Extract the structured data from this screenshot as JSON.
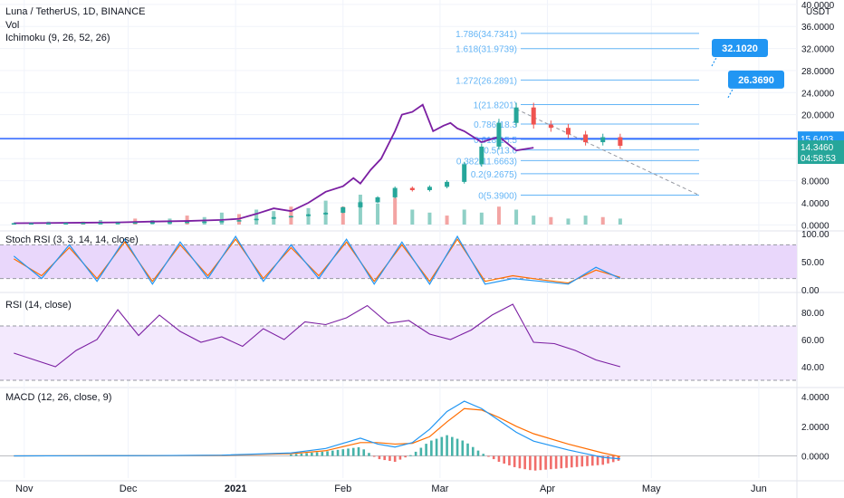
{
  "header": {
    "title": "Luna / TetherUS, 1D, BINANCE",
    "indicators": [
      "Vol",
      "Ichimoku (9, 26, 52, 26)"
    ]
  },
  "colors": {
    "up": "#26a69a",
    "down": "#ef5350",
    "vol_up": "#8fd0c6",
    "vol_down": "#f3a4a3",
    "ichimoku": "#7b1fa2",
    "fib": "#64b5f6",
    "level_line": "#2962ff",
    "stoch_k": "#2196f3",
    "stoch_d": "#ff6d00",
    "rsi": "#7b1fa2",
    "macd": "#2196f3",
    "signal": "#ff6d00",
    "band_fill": "#e9d7fb",
    "callout": "#2196f3",
    "price_tag": "#2196f3",
    "timer_tag": "#26a69a"
  },
  "price_axis": {
    "unit": "USDT",
    "ticks": [
      "40.0000",
      "36.0000",
      "32.0000",
      "28.0000",
      "24.0000",
      "20.0000",
      "16.0000",
      "12.0000",
      "8.0000",
      "4.0000",
      "0.0000"
    ],
    "tick_values": [
      40,
      36,
      32,
      28,
      24,
      20,
      16,
      12,
      8,
      4,
      0
    ],
    "range": [
      -0.6,
      40.8
    ]
  },
  "current_price": {
    "value": "14.3460",
    "number": 14.346,
    "timer": "04:58:53"
  },
  "horizontal_level": {
    "value": "15.6403",
    "number": 15.6403
  },
  "callouts": [
    {
      "text": "32.1020",
      "value": 32.102
    },
    {
      "text": "26.3690",
      "value": 26.369
    }
  ],
  "fib_levels": [
    {
      "label": "1.786(34.7341)",
      "value": 34.7341
    },
    {
      "label": "1.618(31.9739)",
      "value": 31.9739
    },
    {
      "label": "1.272(26.2891)",
      "value": 26.2891
    },
    {
      "label": "1(21.8201)",
      "value": 21.8201
    },
    {
      "label": "0.786(18.3",
      "value": 18.3
    },
    {
      "label": "0.618(15.5",
      "value": 15.5
    },
    {
      "label": "0.5(13.6",
      "value": 13.6
    },
    {
      "label": "0.382(11.6663)",
      "value": 11.6663
    },
    {
      "label": "0.2(9.2675)",
      "value": 9.2675
    },
    {
      "label": "0(5.3900)",
      "value": 5.39
    }
  ],
  "x_axis": {
    "labels": [
      {
        "text": "Nov",
        "day": 3
      },
      {
        "text": "Dec",
        "day": 33
      },
      {
        "text": "2021",
        "day": 64,
        "bold": true
      },
      {
        "text": "Feb",
        "day": 95
      },
      {
        "text": "Mar",
        "day": 123
      },
      {
        "text": "Apr",
        "day": 154
      },
      {
        "text": "May",
        "day": 184
      },
      {
        "text": "Jun",
        "day": 215
      }
    ],
    "range_days": [
      -4,
      226
    ]
  },
  "chart_data": [
    {
      "type": "candlestick",
      "name": "Luna / TetherUS, 1D, BINANCE",
      "x_unit": "days from Oct 29, 2020",
      "x": [
        0,
        5,
        10,
        15,
        20,
        25,
        30,
        35,
        40,
        45,
        50,
        55,
        60,
        65,
        70,
        75,
        80,
        85,
        90,
        95,
        100,
        105,
        110,
        115,
        120,
        125,
        130,
        135,
        140,
        145,
        150,
        155,
        160,
        165,
        170,
        175
      ],
      "close": [
        0.3,
        0.31,
        0.33,
        0.35,
        0.37,
        0.38,
        0.4,
        0.45,
        0.47,
        0.52,
        0.55,
        0.6,
        0.7,
        0.85,
        1.1,
        1.4,
        1.6,
        1.9,
        2.2,
        3.2,
        4.1,
        5.0,
        6.7,
        6.3,
        6.9,
        7.8,
        11.0,
        14.2,
        18.5,
        21.3,
        18.2,
        17.6,
        16.4,
        15.0,
        15.9,
        14.35
      ]
    },
    {
      "type": "line",
      "name": "Ichimoku (9, 26, 52, 26)",
      "x": [
        0,
        10,
        20,
        30,
        40,
        50,
        60,
        65,
        70,
        75,
        80,
        85,
        90,
        95,
        98,
        100,
        103,
        106,
        110,
        112,
        115,
        118,
        121,
        124,
        126,
        128,
        130,
        135,
        140,
        145,
        150
      ],
      "values": [
        0.3,
        0.35,
        0.4,
        0.45,
        0.6,
        0.7,
        0.9,
        1.1,
        2.0,
        3.0,
        2.5,
        4.0,
        6.0,
        7.0,
        8.5,
        7.5,
        10.0,
        12.0,
        17.0,
        20.0,
        20.5,
        21.8,
        17.0,
        18.0,
        18.5,
        17.5,
        17.0,
        15.0,
        16.0,
        13.5,
        14.0
      ]
    },
    {
      "type": "bar",
      "name": "Vol",
      "x_range": [
        0,
        175
      ],
      "values_relative": [
        0.05,
        0.05,
        0.1,
        0.05,
        0.1,
        0.15,
        0.1,
        0.2,
        0.15,
        0.2,
        0.3,
        0.25,
        0.4,
        0.35,
        0.5,
        0.45,
        0.6,
        0.55,
        0.8,
        0.6,
        1.0,
        0.7,
        0.9,
        0.5,
        0.4,
        0.3,
        0.5,
        0.4,
        0.6,
        0.5,
        0.3,
        0.25,
        0.2,
        0.3,
        0.25,
        0.2
      ]
    },
    {
      "type": "line",
      "name": "Stoch RSI (3, 3, 14, 14, close)",
      "ylim": [
        0,
        100
      ],
      "ticks": [
        "100.00",
        "50.00",
        "0.00"
      ],
      "tick_values": [
        100,
        50,
        0
      ],
      "band": [
        20,
        80
      ],
      "x": [
        0,
        8,
        16,
        24,
        32,
        40,
        48,
        56,
        64,
        72,
        80,
        88,
        96,
        104,
        112,
        120,
        128,
        136,
        144,
        152,
        160,
        168,
        175
      ],
      "k": [
        60,
        20,
        80,
        15,
        90,
        10,
        85,
        20,
        95,
        15,
        80,
        20,
        90,
        10,
        85,
        10,
        95,
        10,
        20,
        15,
        10,
        40,
        20
      ],
      "d": [
        55,
        25,
        75,
        20,
        85,
        15,
        80,
        25,
        90,
        20,
        75,
        25,
        85,
        15,
        80,
        15,
        90,
        15,
        25,
        18,
        12,
        35,
        22
      ]
    },
    {
      "type": "line",
      "name": "RSI (14, close)",
      "ylim": [
        30,
        90
      ],
      "ticks": [
        "80.00",
        "60.00",
        "40.00"
      ],
      "tick_values": [
        80,
        60,
        40
      ],
      "band": [
        30,
        70
      ],
      "x": [
        0,
        6,
        12,
        18,
        24,
        30,
        36,
        42,
        48,
        54,
        60,
        66,
        72,
        78,
        84,
        90,
        96,
        102,
        108,
        114,
        120,
        126,
        132,
        138,
        144,
        150,
        156,
        162,
        168,
        175
      ],
      "values": [
        50,
        45,
        40,
        52,
        60,
        82,
        63,
        78,
        66,
        58,
        62,
        55,
        68,
        60,
        73,
        71,
        76,
        85,
        72,
        74,
        64,
        60,
        67,
        78,
        86,
        58,
        57,
        52,
        45,
        40
      ]
    },
    {
      "type": "line",
      "name": "MACD (12, 26, close, 9)",
      "ylim": [
        -1.5,
        4.5
      ],
      "ticks": [
        "4.0000",
        "2.0000",
        "0.0000"
      ],
      "tick_values": [
        4,
        2,
        0
      ],
      "x": [
        0,
        20,
        40,
        60,
        80,
        90,
        100,
        105,
        110,
        115,
        120,
        125,
        130,
        135,
        140,
        145,
        150,
        160,
        170,
        175
      ],
      "macd": [
        0,
        0.01,
        0.02,
        0.05,
        0.2,
        0.5,
        1.2,
        0.8,
        0.6,
        0.9,
        1.8,
        3.0,
        3.7,
        3.2,
        2.4,
        1.6,
        1.0,
        0.4,
        -0.1,
        -0.2
      ],
      "signal": [
        0,
        0.01,
        0.02,
        0.04,
        0.15,
        0.35,
        0.9,
        0.9,
        0.8,
        0.85,
        1.3,
        2.3,
        3.2,
        3.1,
        2.6,
        2.0,
        1.5,
        0.8,
        0.2,
        -0.05
      ]
    }
  ]
}
